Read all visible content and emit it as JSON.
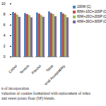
{
  "chart_data": {
    "type": "bar",
    "caption": [
      "n of incorporation",
      "valuation of cookies formulated with replacement of whea",
      "and sweet potato flour (SP) blends."
    ],
    "categories": [
      "Colour",
      "Texture",
      "Flavour",
      "Taste",
      "Overall Acceptability"
    ],
    "series": [
      {
        "name": "100W (C)",
        "color": "#4f81bd",
        "values": [
          8.4,
          8.2,
          8.3,
          8.5,
          8.4
        ]
      },
      {
        "name": "80W+10CI+10SP (CII)",
        "color": "#c0504d",
        "values": [
          8.2,
          8.0,
          8.1,
          8.2,
          8.1
        ]
      },
      {
        "name": "60W+20CI+20SP (CIII)",
        "color": "#9bbb59",
        "values": [
          7.9,
          7.8,
          7.8,
          8.0,
          7.9
        ]
      },
      {
        "name": "40W+30CI+30SP (CIV)",
        "color": "#8064a2",
        "values": [
          7.5,
          7.4,
          7.5,
          7.6,
          7.4
        ]
      }
    ],
    "ylim": [
      0,
      10
    ],
    "yticks": [
      0,
      2,
      4,
      6,
      8,
      10
    ],
    "grid": false,
    "legend": "right"
  }
}
